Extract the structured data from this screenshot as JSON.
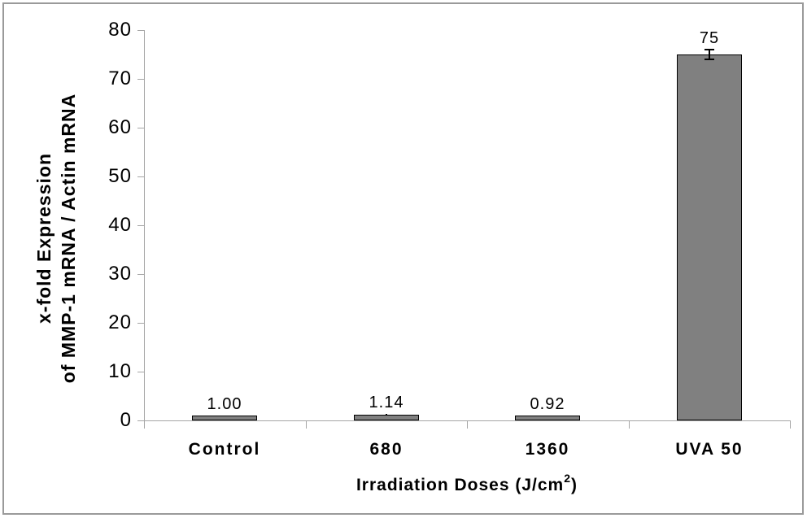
{
  "figure": {
    "frame_color": "#9a9a9a",
    "background": "#ffffff"
  },
  "chart_data": {
    "type": "bar",
    "title": "",
    "categories": [
      "Control",
      "680",
      "1360",
      "UVA 50"
    ],
    "values": [
      1.0,
      1.14,
      0.92,
      75
    ],
    "data_labels": [
      "1.00",
      "1.14",
      "0.92",
      "75"
    ],
    "errors": [
      null,
      0.2,
      null,
      1
    ],
    "xlabel": {
      "main": "Irradiation Doses (J/cm",
      "sup": "2",
      "end": ")"
    },
    "ylabel_lines": [
      "x-fold Expression",
      "of MMP-1 mRNA / Actin mRNA"
    ],
    "ylim": [
      0,
      80
    ],
    "yticks": [
      0,
      10,
      20,
      30,
      40,
      50,
      60,
      70,
      80
    ],
    "grid": false,
    "legend": false,
    "colors": {
      "bar_fill": "#808080",
      "bar_border": "#000000",
      "axis": "#a6a6a6",
      "text": "#000000",
      "error_bar": "#000000"
    }
  }
}
